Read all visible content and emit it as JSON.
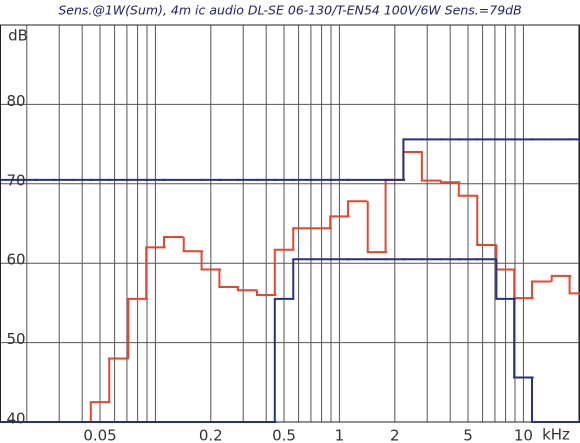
{
  "chart_data": {
    "type": "step",
    "title": "Sens.@1W(Sum), 4m ic audio DL-SE 06-130/T-EN54 100V/6W Sens.=79dB",
    "y_label": "dB",
    "x_label": "kHz",
    "x_scale": "log",
    "grid": true,
    "x": [
      0.016,
      0.02,
      0.025,
      0.0315,
      0.04,
      0.05,
      0.063,
      0.08,
      0.1,
      0.125,
      0.16,
      0.2,
      0.25,
      0.315,
      0.4,
      0.5,
      0.63,
      0.8,
      1,
      1.25,
      1.6,
      2,
      2.5,
      3.15,
      4,
      5,
      6.3,
      8,
      10,
      12.5,
      16,
      20
    ],
    "series": [
      {
        "color": "#e8452c",
        "values": [
          40,
          40,
          40,
          40,
          40,
          42.5,
          48,
          55.5,
          62,
          63.3,
          61.5,
          59.2,
          57,
          56.6,
          56,
          61.7,
          64.4,
          64.4,
          65.9,
          67.8,
          61.4,
          70.5,
          74,
          70.4,
          70.2,
          68.5,
          62.3,
          59.2,
          55.6,
          57.7,
          58.4,
          56.2
        ]
      },
      {
        "color": "#2a2f86",
        "values": [
          70.5,
          70.5,
          70.5,
          70.5,
          70.5,
          70.5,
          70.5,
          70.5,
          70.5,
          70.5,
          70.5,
          70.5,
          70.5,
          70.5,
          70.5,
          70.5,
          70.5,
          70.5,
          70.5,
          70.5,
          70.5,
          70.5,
          75.6,
          75.6,
          75.6,
          75.6,
          75.6,
          75.6,
          75.6,
          75.6,
          75.6,
          75.6
        ]
      },
      {
        "color": "#2a2f86",
        "values": [
          40,
          40,
          40,
          40,
          40,
          40,
          40,
          40,
          40,
          40,
          40,
          40,
          40,
          40,
          40,
          55.5,
          60.5,
          60.5,
          60.5,
          60.5,
          60.5,
          60.5,
          60.5,
          60.5,
          60.5,
          60.5,
          60.5,
          55.5,
          45.6,
          40,
          40,
          40
        ]
      }
    ],
    "xlim": [
      0.0143,
      20.3
    ],
    "xticks": [
      0.05,
      0.2,
      0.5,
      1,
      2,
      5,
      10
    ],
    "ylim": [
      40,
      90
    ],
    "yticks": [
      40,
      50,
      60,
      70,
      80
    ]
  }
}
